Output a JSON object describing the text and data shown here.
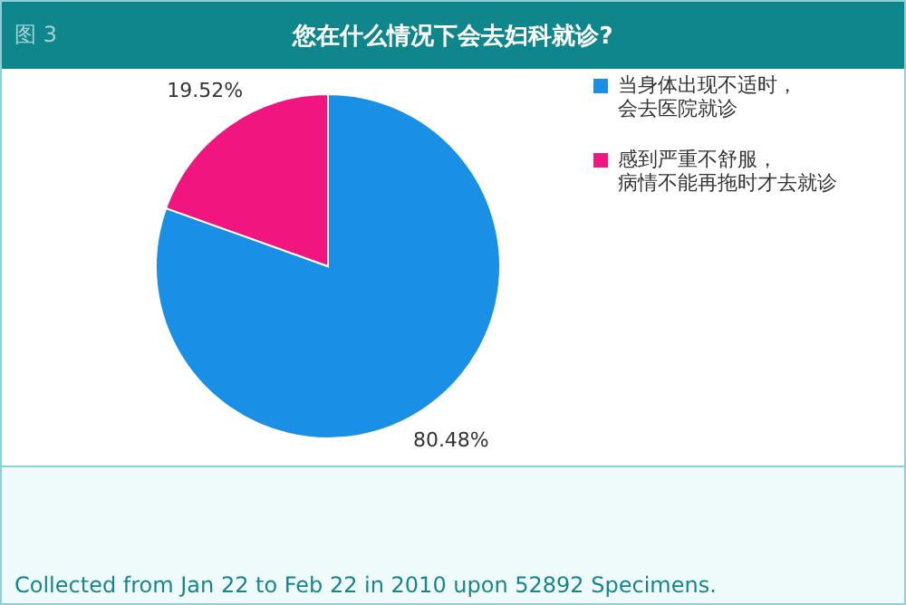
{
  "chart_data": {
    "type": "pie",
    "title": "您在什么情况下会去妇科就诊?",
    "categories": [
      "当身体出现不适时，会去医院就诊",
      "感到严重不舒服，病情不能再拖时才去就诊"
    ],
    "values": [
      80.48,
      19.52
    ],
    "colors": [
      "#1a8fe6",
      "#f0157f"
    ],
    "value_labels": [
      "80.48%",
      "19.52%"
    ],
    "legend": "right",
    "annotations": [
      "图 3",
      "Collected from Jan 22 to Feb 22 in 2010 upon 52892 Specimens."
    ]
  }
}
